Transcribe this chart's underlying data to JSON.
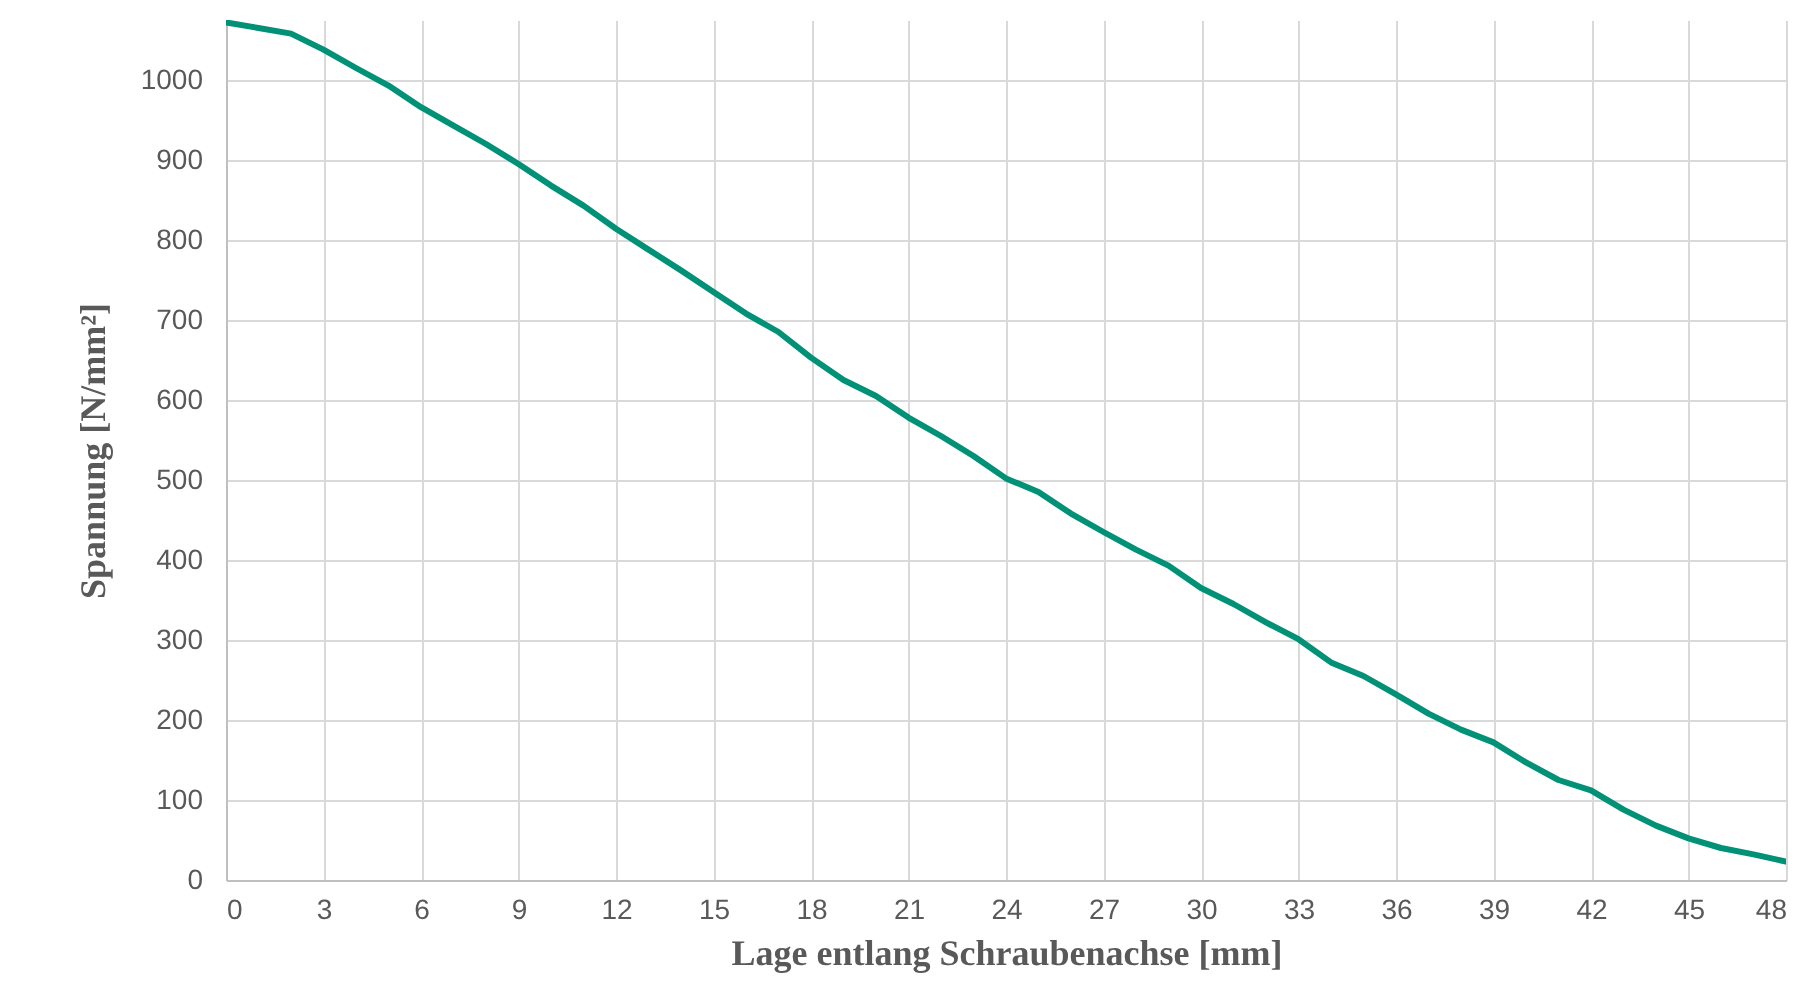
{
  "chart_data": {
    "type": "line",
    "xlabel": "Lage entlang Schraubenachse [mm]",
    "ylabel": "Spannung [N/mm²]",
    "x": [
      0,
      1,
      2,
      3,
      4,
      5,
      6,
      7,
      8,
      9,
      10,
      11,
      12,
      13,
      14,
      15,
      16,
      17,
      18,
      19,
      20,
      21,
      22,
      23,
      24,
      25,
      26,
      27,
      28,
      29,
      30,
      31,
      32,
      33,
      34,
      35,
      36,
      37,
      38,
      39,
      40,
      41,
      42,
      43,
      44,
      45,
      46,
      47,
      48
    ],
    "series": [
      {
        "color": "#009177",
        "values": [
          1072,
          1065,
          1058,
          1038,
          1015,
          993,
          966,
          943,
          920,
          895,
          868,
          843,
          814,
          788,
          762,
          735,
          708,
          685,
          653,
          625,
          605,
          578,
          555,
          530,
          502,
          485,
          458,
          435,
          413,
          393,
          365,
          345,
          322,
          301,
          272,
          255,
          232,
          208,
          188,
          172,
          147,
          125,
          112,
          88,
          68,
          52,
          40,
          32,
          23
        ]
      }
    ],
    "xlim": [
      0,
      48
    ],
    "xticks": [
      0,
      3,
      6,
      9,
      12,
      15,
      18,
      21,
      24,
      27,
      30,
      33,
      36,
      39,
      42,
      45,
      48
    ],
    "ylim": [
      0,
      1075
    ],
    "yticks": [
      0,
      100,
      200,
      300,
      400,
      500,
      600,
      700,
      800,
      900,
      1000
    ],
    "grid": true,
    "marker": "none",
    "line_style": "solid"
  }
}
